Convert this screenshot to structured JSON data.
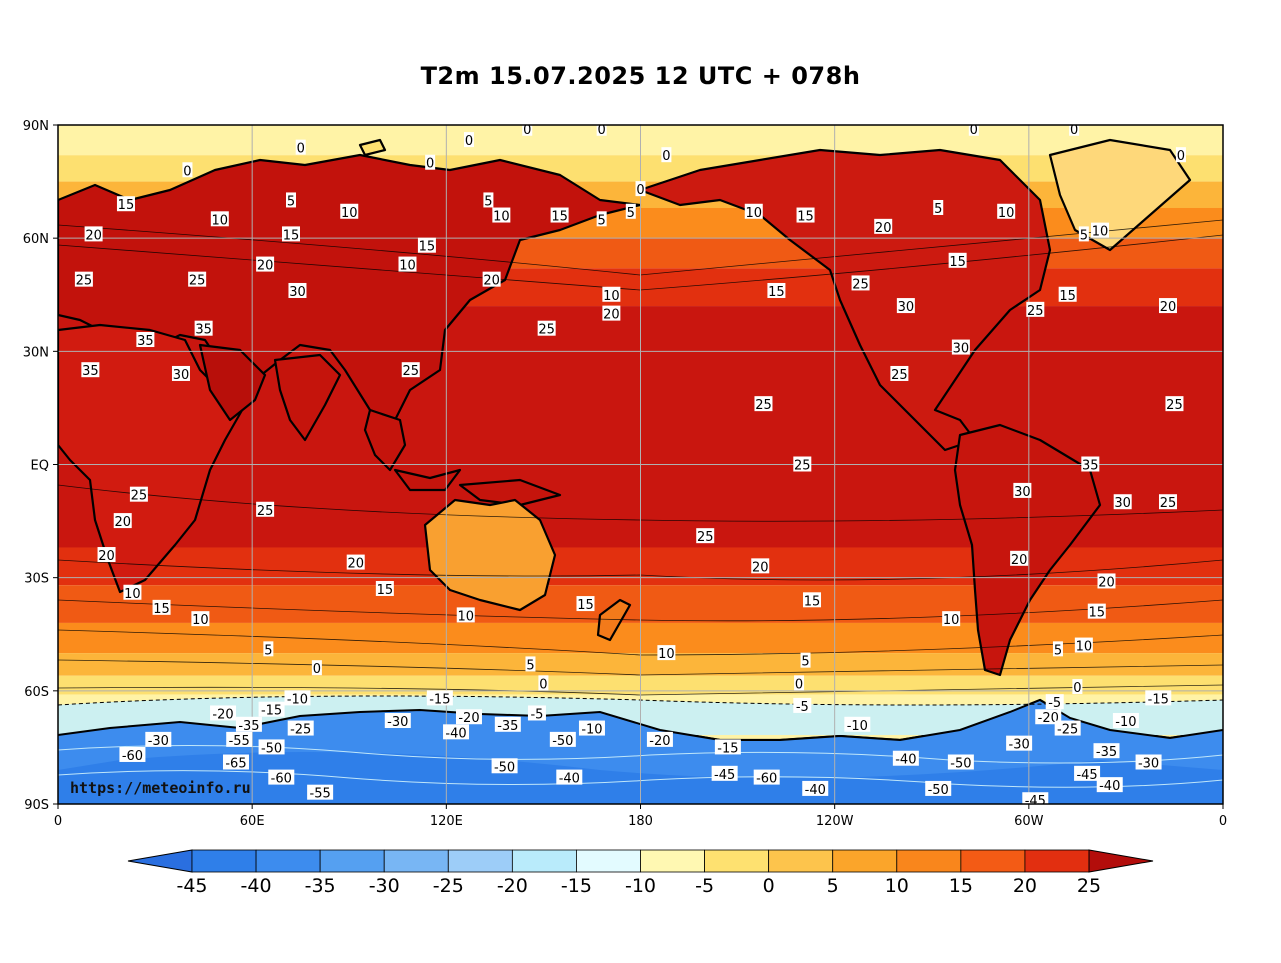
{
  "title": "T2m 15.07.2025 12 UTC + 078h",
  "credit": "https://meteoinfo.ru",
  "colors": {
    "frame": "#000000",
    "grid": "#b0b0b0",
    "land_outline": "#000000",
    "ocean_tropics": "#c9160f",
    "ocean_warm": "#e2300f",
    "ocean_mid": "#f05a14",
    "ocean_cool": "#fb8c1c",
    "ocean_cold": "#fcb53a",
    "sub_zero": "#fde070",
    "polar_light": "#fff3a6",
    "polar_ice": "#c7effa",
    "antarctic": "#2d7fe8"
  },
  "chart_data": {
    "type": "heatmap",
    "title": "T2m 15.07.2025 12 UTC + 078h",
    "x_ticks": [
      "0",
      "60E",
      "120E",
      "180",
      "120W",
      "60W",
      "0"
    ],
    "y_ticks": [
      "90N",
      "60N",
      "30N",
      "EQ",
      "30S",
      "60S",
      "90S"
    ],
    "x_tick_values": [
      0,
      60,
      120,
      180,
      240,
      300,
      360
    ],
    "y_tick_values": [
      90,
      60,
      30,
      0,
      -30,
      -60,
      -90
    ],
    "grid": true,
    "colorbar": {
      "levels": [
        -45,
        -40,
        -35,
        -30,
        -25,
        -20,
        -15,
        -10,
        -5,
        0,
        5,
        10,
        15,
        20,
        25
      ],
      "tick_labels": [
        "-45",
        "-40",
        "-35",
        "-30",
        "-25",
        "-20",
        "-15",
        "-10",
        "-5",
        "0",
        "5",
        "10",
        "15",
        "20",
        "25"
      ],
      "colors": [
        "#2f7fe9",
        "#3d8cee",
        "#55a0f1",
        "#78b6f4",
        "#9dcdf8",
        "#b9ebfb",
        "#e3fbff",
        "#fff8b2",
        "#fee170",
        "#fdc44c",
        "#fba52a",
        "#f9861c",
        "#f35b15",
        "#e22f10",
        "#c9160f"
      ],
      "under_color": "#2a6fe0",
      "over_color": "#b30d0b",
      "extend": "both"
    },
    "contour_labels": [
      {
        "value": "0",
        "lon": 145,
        "lat": 89
      },
      {
        "value": "0",
        "lon": 127,
        "lat": 86
      },
      {
        "value": "0",
        "lon": 168,
        "lat": 89
      },
      {
        "value": "0",
        "lon": 283,
        "lat": 89
      },
      {
        "value": "0",
        "lon": 314,
        "lat": 89
      },
      {
        "value": "0",
        "lon": 40,
        "lat": 78
      },
      {
        "value": "0",
        "lon": 75,
        "lat": 84
      },
      {
        "value": "0",
        "lon": 115,
        "lat": 80
      },
      {
        "value": "0",
        "lon": 188,
        "lat": 82
      },
      {
        "value": "0",
        "lon": 180,
        "lat": 73
      },
      {
        "value": "0",
        "lon": 347,
        "lat": 82
      },
      {
        "value": "5",
        "lon": 72,
        "lat": 70
      },
      {
        "value": "5",
        "lon": 133,
        "lat": 70
      },
      {
        "value": "5",
        "lon": 168,
        "lat": 65
      },
      {
        "value": "5",
        "lon": 177,
        "lat": 67
      },
      {
        "value": "5",
        "lon": 272,
        "lat": 68
      },
      {
        "value": "5",
        "lon": 317,
        "lat": 61
      },
      {
        "value": "10",
        "lon": 50,
        "lat": 65
      },
      {
        "value": "10",
        "lon": 90,
        "lat": 67
      },
      {
        "value": "10",
        "lon": 137,
        "lat": 66
      },
      {
        "value": "10",
        "lon": 108,
        "lat": 53
      },
      {
        "value": "10",
        "lon": 171,
        "lat": 45
      },
      {
        "value": "10",
        "lon": 215,
        "lat": 67
      },
      {
        "value": "10",
        "lon": 293,
        "lat": 67
      },
      {
        "value": "10",
        "lon": 322,
        "lat": 62
      },
      {
        "value": "15",
        "lon": 21,
        "lat": 69
      },
      {
        "value": "15",
        "lon": 72,
        "lat": 61
      },
      {
        "value": "15",
        "lon": 114,
        "lat": 58
      },
      {
        "value": "15",
        "lon": 155,
        "lat": 66
      },
      {
        "value": "15",
        "lon": 231,
        "lat": 66
      },
      {
        "value": "15",
        "lon": 222,
        "lat": 46
      },
      {
        "value": "15",
        "lon": 278,
        "lat": 54
      },
      {
        "value": "15",
        "lon": 312,
        "lat": 45
      },
      {
        "value": "20",
        "lon": 11,
        "lat": 61
      },
      {
        "value": "20",
        "lon": 64,
        "lat": 53
      },
      {
        "value": "20",
        "lon": 134,
        "lat": 49
      },
      {
        "value": "20",
        "lon": 171,
        "lat": 40
      },
      {
        "value": "20",
        "lon": 255,
        "lat": 63
      },
      {
        "value": "20",
        "lon": 343,
        "lat": 42
      },
      {
        "value": "25",
        "lon": 8,
        "lat": 49
      },
      {
        "value": "25",
        "lon": 43,
        "lat": 49
      },
      {
        "value": "25",
        "lon": 151,
        "lat": 36
      },
      {
        "value": "25",
        "lon": 248,
        "lat": 48
      },
      {
        "value": "25",
        "lon": 302,
        "lat": 41
      },
      {
        "value": "25",
        "lon": 109,
        "lat": 25
      },
      {
        "value": "25",
        "lon": 218,
        "lat": 16
      },
      {
        "value": "25",
        "lon": 260,
        "lat": 24
      },
      {
        "value": "25",
        "lon": 345,
        "lat": 16
      },
      {
        "value": "25",
        "lon": 230,
        "lat": 0
      },
      {
        "value": "25",
        "lon": 25,
        "lat": -8
      },
      {
        "value": "25",
        "lon": 64,
        "lat": -12
      },
      {
        "value": "25",
        "lon": 200,
        "lat": -19
      },
      {
        "value": "25",
        "lon": 343,
        "lat": -10
      },
      {
        "value": "30",
        "lon": 74,
        "lat": 46
      },
      {
        "value": "30",
        "lon": 262,
        "lat": 42
      },
      {
        "value": "30",
        "lon": 38,
        "lat": 24
      },
      {
        "value": "30",
        "lon": 279,
        "lat": 31
      },
      {
        "value": "30",
        "lon": 298,
        "lat": -7
      },
      {
        "value": "30",
        "lon": 329,
        "lat": -10
      },
      {
        "value": "35",
        "lon": 27,
        "lat": 33
      },
      {
        "value": "35",
        "lon": 45,
        "lat": 36
      },
      {
        "value": "35",
        "lon": 10,
        "lat": 25
      },
      {
        "value": "35",
        "lon": 319,
        "lat": 0
      },
      {
        "value": "20",
        "lon": 20,
        "lat": -15
      },
      {
        "value": "20",
        "lon": 15,
        "lat": -24
      },
      {
        "value": "20",
        "lon": 92,
        "lat": -26
      },
      {
        "value": "20",
        "lon": 217,
        "lat": -27
      },
      {
        "value": "20",
        "lon": 297,
        "lat": -25
      },
      {
        "value": "20",
        "lon": 324,
        "lat": -31
      },
      {
        "value": "15",
        "lon": 32,
        "lat": -38
      },
      {
        "value": "15",
        "lon": 101,
        "lat": -33
      },
      {
        "value": "15",
        "lon": 163,
        "lat": -37
      },
      {
        "value": "15",
        "lon": 233,
        "lat": -36
      },
      {
        "value": "15",
        "lon": 321,
        "lat": -39
      },
      {
        "value": "10",
        "lon": 23,
        "lat": -34
      },
      {
        "value": "10",
        "lon": 44,
        "lat": -41
      },
      {
        "value": "10",
        "lon": 126,
        "lat": -40
      },
      {
        "value": "10",
        "lon": 188,
        "lat": -50
      },
      {
        "value": "10",
        "lon": 276,
        "lat": -41
      },
      {
        "value": "10",
        "lon": 317,
        "lat": -48
      },
      {
        "value": "5",
        "lon": 65,
        "lat": -49
      },
      {
        "value": "5",
        "lon": 146,
        "lat": -53
      },
      {
        "value": "5",
        "lon": 231,
        "lat": -52
      },
      {
        "value": "5",
        "lon": 309,
        "lat": -49
      },
      {
        "value": "0",
        "lon": 80,
        "lat": -54
      },
      {
        "value": "0",
        "lon": 150,
        "lat": -58
      },
      {
        "value": "0",
        "lon": 229,
        "lat": -58
      },
      {
        "value": "0",
        "lon": 315,
        "lat": -59
      },
      {
        "value": "-5",
        "lon": 148,
        "lat": -66
      },
      {
        "value": "-5",
        "lon": 230,
        "lat": -64
      },
      {
        "value": "-5",
        "lon": 308,
        "lat": -63
      },
      {
        "value": "-10",
        "lon": 74,
        "lat": -62
      },
      {
        "value": "-10",
        "lon": 165,
        "lat": -70
      },
      {
        "value": "-10",
        "lon": 247,
        "lat": -69
      },
      {
        "value": "-10",
        "lon": 330,
        "lat": -68
      },
      {
        "value": "-15",
        "lon": 118,
        "lat": -62
      },
      {
        "value": "-15",
        "lon": 66,
        "lat": -65
      },
      {
        "value": "-15",
        "lon": 207,
        "lat": -75
      },
      {
        "value": "-15",
        "lon": 340,
        "lat": -62
      },
      {
        "value": "-20",
        "lon": 51,
        "lat": -66
      },
      {
        "value": "-20",
        "lon": 127,
        "lat": -67
      },
      {
        "value": "-20",
        "lon": 186,
        "lat": -73
      },
      {
        "value": "-20",
        "lon": 306,
        "lat": -67
      },
      {
        "value": "-25",
        "lon": 75,
        "lat": -70
      },
      {
        "value": "-25",
        "lon": 312,
        "lat": -70
      },
      {
        "value": "-30",
        "lon": 31,
        "lat": -73
      },
      {
        "value": "-30",
        "lon": 105,
        "lat": -68
      },
      {
        "value": "-30",
        "lon": 297,
        "lat": -74
      },
      {
        "value": "-30",
        "lon": 337,
        "lat": -79
      },
      {
        "value": "-35",
        "lon": 59,
        "lat": -69
      },
      {
        "value": "-35",
        "lon": 139,
        "lat": -69
      },
      {
        "value": "-35",
        "lon": 324,
        "lat": -76
      },
      {
        "value": "-40",
        "lon": 123,
        "lat": -71
      },
      {
        "value": "-40",
        "lon": 158,
        "lat": -83
      },
      {
        "value": "-40",
        "lon": 262,
        "lat": -78
      },
      {
        "value": "-40",
        "lon": 234,
        "lat": -86
      },
      {
        "value": "-40",
        "lon": 325,
        "lat": -85
      },
      {
        "value": "-45",
        "lon": 206,
        "lat": -82
      },
      {
        "value": "-45",
        "lon": 302,
        "lat": -89
      },
      {
        "value": "-45",
        "lon": 318,
        "lat": -82
      },
      {
        "value": "-50",
        "lon": 156,
        "lat": -73
      },
      {
        "value": "-50",
        "lon": 138,
        "lat": -80
      },
      {
        "value": "-50",
        "lon": 66,
        "lat": -75
      },
      {
        "value": "-50",
        "lon": 279,
        "lat": -79
      },
      {
        "value": "-50",
        "lon": 272,
        "lat": -86
      },
      {
        "value": "-55",
        "lon": 81,
        "lat": -87
      },
      {
        "value": "-55",
        "lon": 56,
        "lat": -73
      },
      {
        "value": "-60",
        "lon": 23,
        "lat": -77
      },
      {
        "value": "-60",
        "lon": 69,
        "lat": -83
      },
      {
        "value": "-60",
        "lon": 219,
        "lat": -83
      },
      {
        "value": "-65",
        "lon": 55,
        "lat": -79
      }
    ]
  }
}
